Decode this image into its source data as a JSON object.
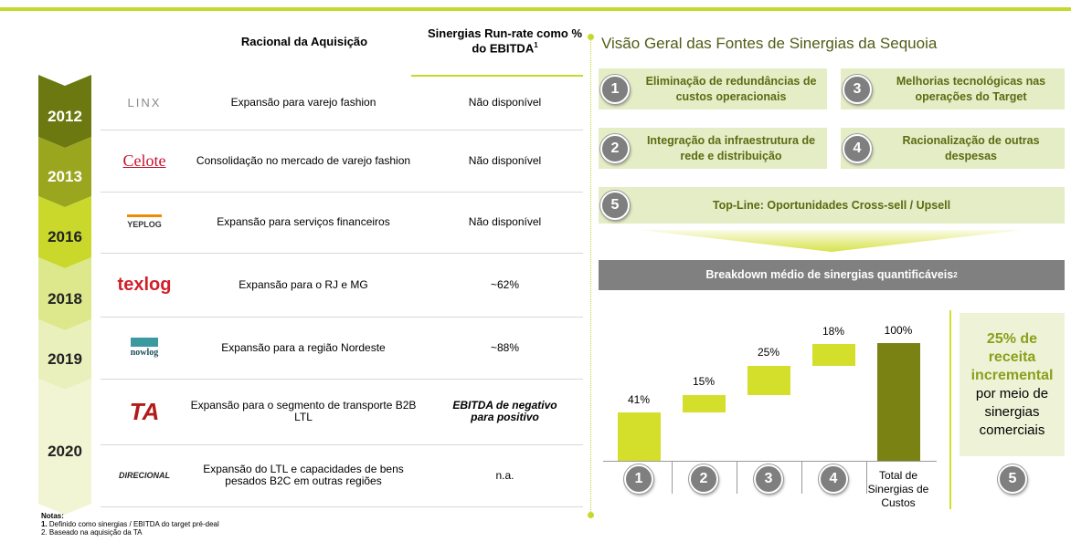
{
  "table": {
    "headers": [
      "Racional da Aquisição",
      "Sinergias Run-rate como % do EBITDA"
    ],
    "header_note": "1",
    "years": [
      "2012",
      "2013",
      "2016",
      "2018",
      "2019",
      "2020"
    ],
    "rows": [
      {
        "logo": "LINX",
        "rationale": "Expansão para varejo fashion",
        "synergy": "Não disponível"
      },
      {
        "logo": "Celote",
        "rationale": "Consolidação no mercado de varejo fashion",
        "synergy": "Não disponível"
      },
      {
        "logo": "YEPLOG",
        "rationale": "Expansão para serviços financeiros",
        "synergy": "Não disponível"
      },
      {
        "logo": "texlog",
        "rationale": "Expansão para o RJ e MG",
        "synergy": "~62%"
      },
      {
        "logo": "nowlog",
        "rationale": "Expansão para a região Nordeste",
        "synergy": "~88%"
      },
      {
        "logo": "TA",
        "rationale": "Expansão para o segmento de transporte B2B LTL",
        "synergy": "EBITDA de negativo para positivo"
      },
      {
        "logo": "DIRECIONAL",
        "rationale": "Expansão do LTL e capacidades de bens pesados B2C em outras regiões",
        "synergy": "n.a."
      }
    ]
  },
  "overview": {
    "title": "Visão Geral das Fontes de Sinergias da Sequoia",
    "items": [
      {
        "number": 1,
        "text": "Eliminação de redundâncias de custos operacionais"
      },
      {
        "number": 3,
        "text": "Melhorias tecnológicas nas operações do Target"
      },
      {
        "number": 2,
        "text": "Integração da infraestrutura de rede e distribuição"
      },
      {
        "number": 4,
        "text": "Racionalização de outras despesas"
      },
      {
        "number": 5,
        "text": "Top-Line: Oportunidades Cross-sell / Upsell"
      }
    ]
  },
  "chart_data": {
    "type": "waterfall",
    "title": "Breakdown médio de sinergias quantificáveis",
    "title_note": "2",
    "categories": [
      "1",
      "2",
      "3",
      "4",
      "Total de Sinergias de Custos"
    ],
    "measures": [
      "relative",
      "relative",
      "relative",
      "relative",
      "total"
    ],
    "values": [
      41,
      15,
      25,
      18,
      100
    ],
    "value_labels": [
      "41%",
      "15%",
      "25%",
      "18%",
      "100%"
    ],
    "color": "#d3df2b",
    "total_color": "#7b8214"
  },
  "commercial": {
    "highlight": "25% de receita incremental",
    "text": "por meio de sinergias comerciais",
    "number": 5
  },
  "notes": {
    "title": "Notas:",
    "items": [
      {
        "number": "1.",
        "text": "Definido como sinergias / EBITDA do target pré-deal"
      },
      {
        "number": "2.",
        "text": "Baseado na aquisição da TA"
      }
    ]
  }
}
